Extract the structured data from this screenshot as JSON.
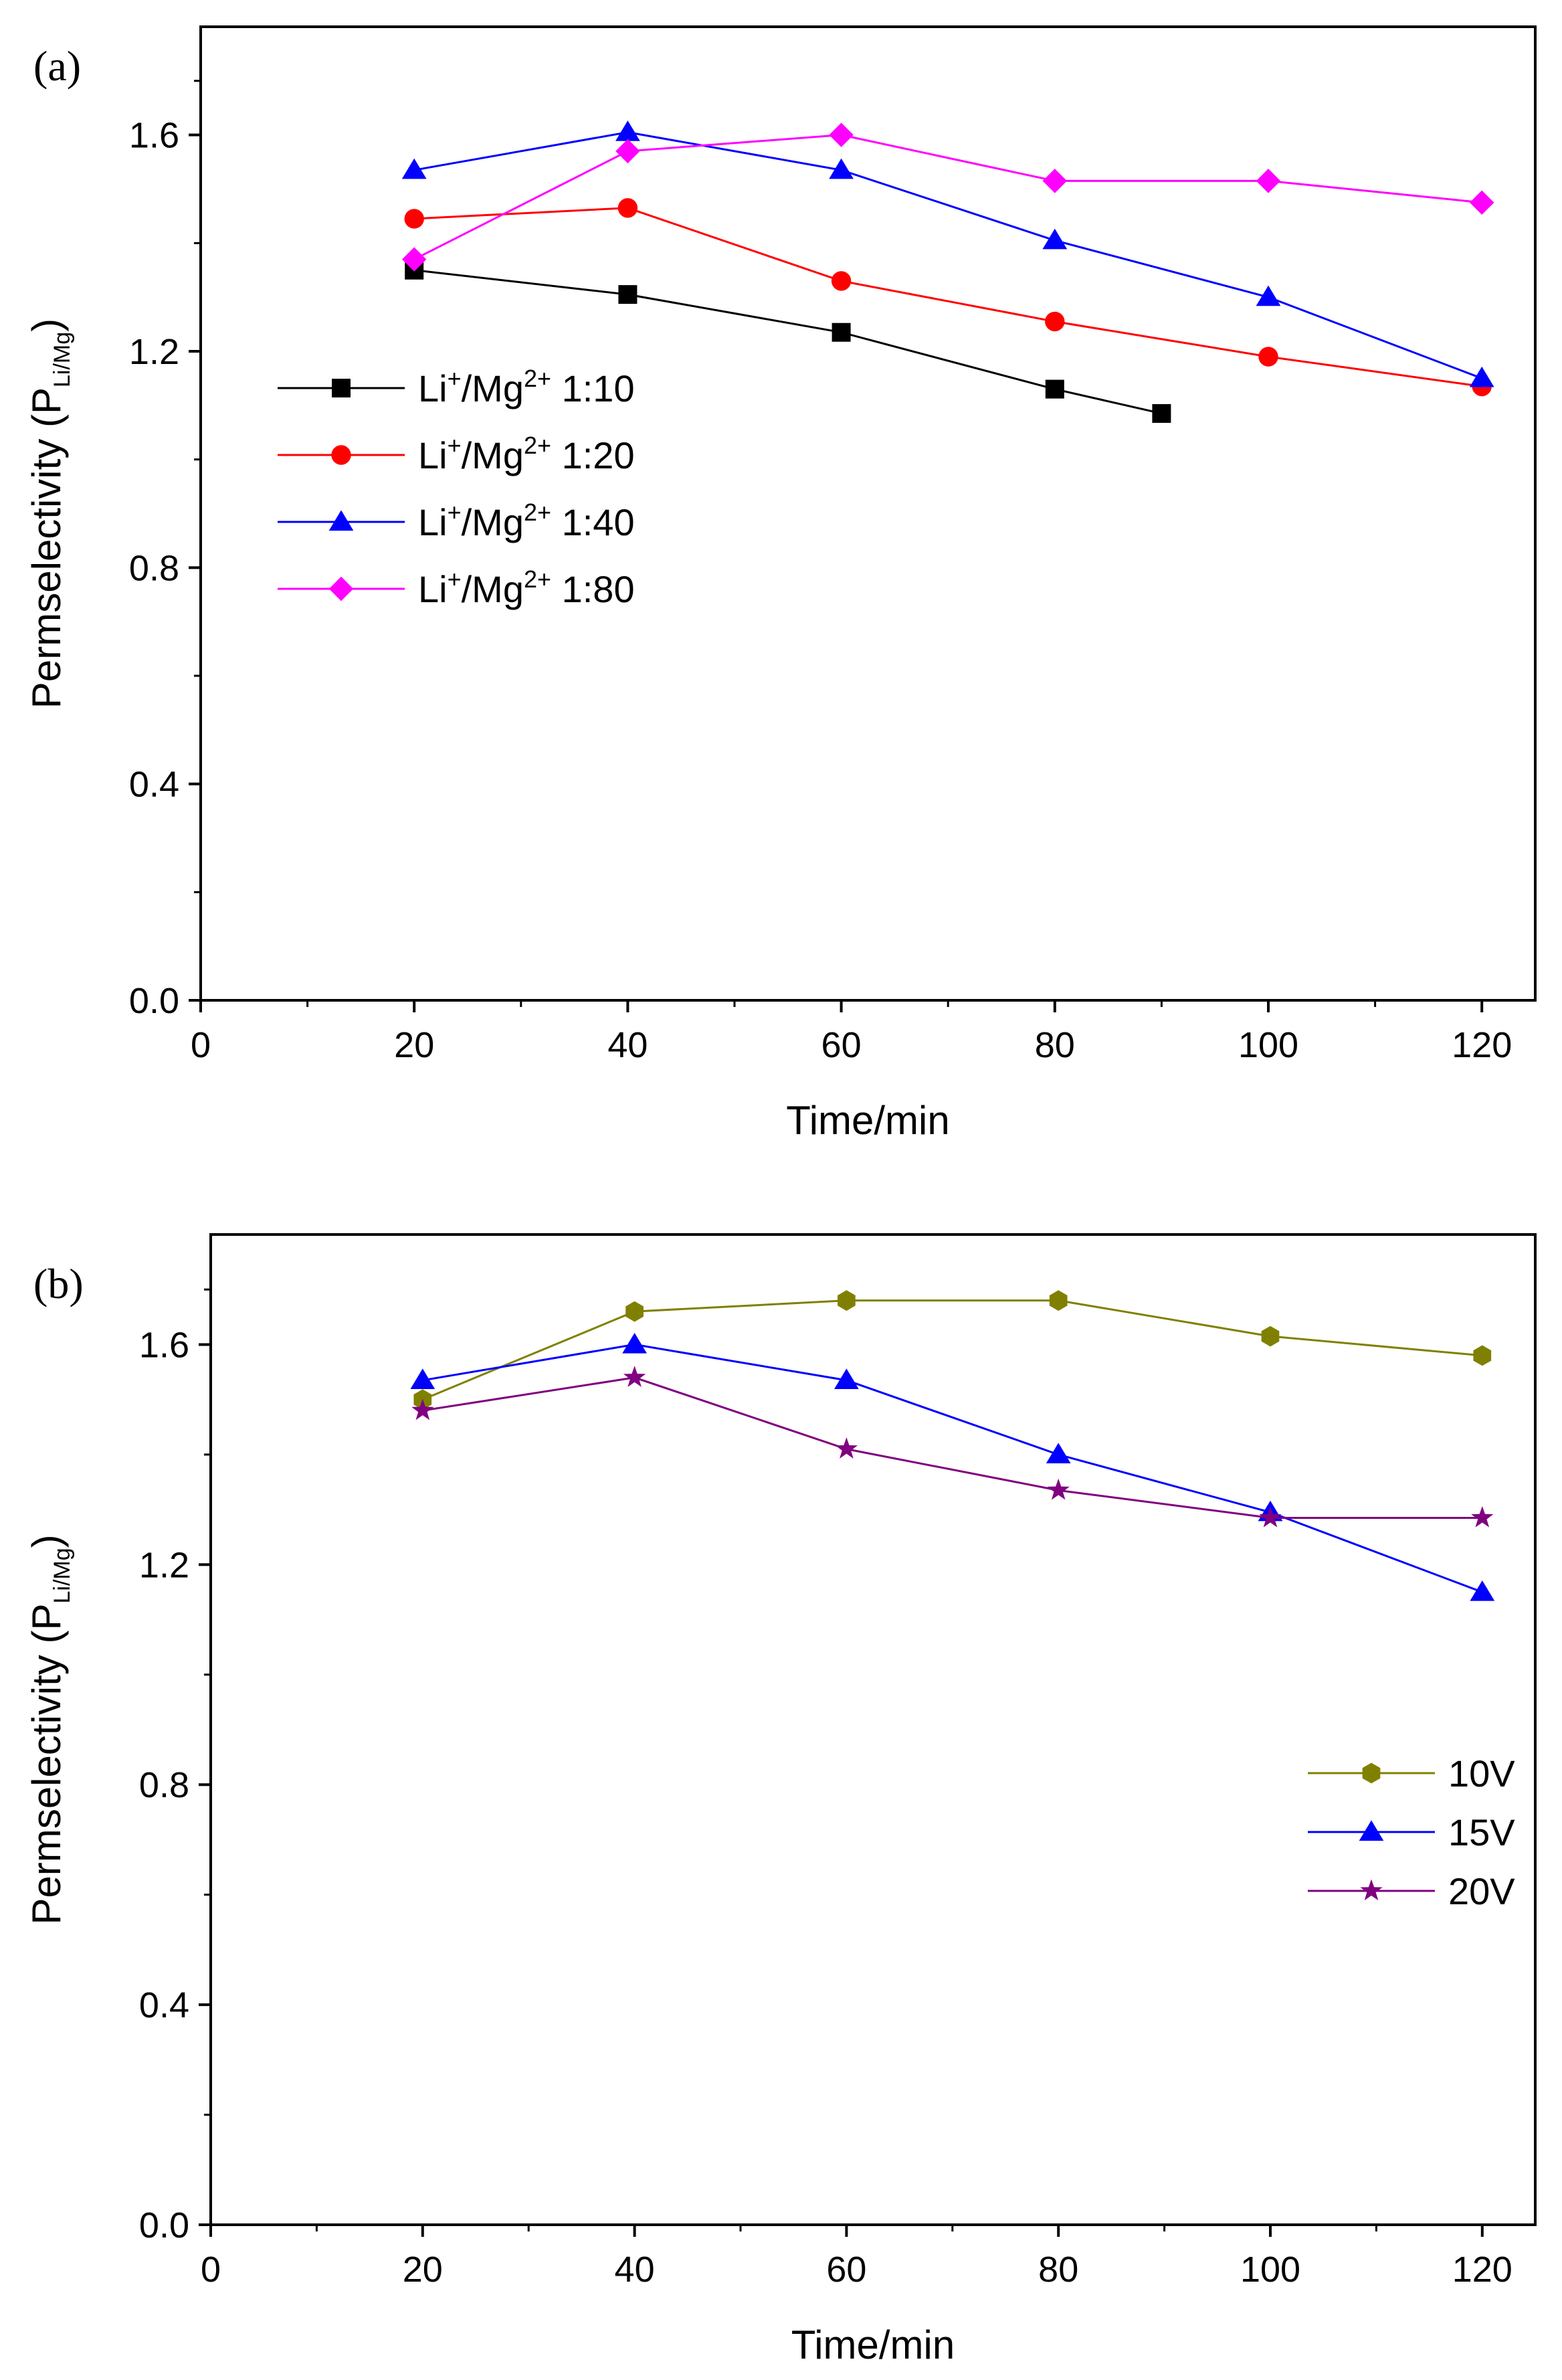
{
  "chart_data": [
    {
      "type": "line",
      "panel_label": "(a)",
      "xlabel": "Time/min",
      "ylabel_main": "Permselectivity (P",
      "ylabel_sub": "Li/Mg",
      "ylabel_end": ")",
      "xlim": [
        0,
        125
      ],
      "ylim": [
        0,
        1.8
      ],
      "xticks": [
        0,
        20,
        40,
        60,
        80,
        100,
        120
      ],
      "xtick_labels": [
        "0",
        "20",
        "40",
        "60",
        "80",
        "100",
        "120"
      ],
      "yticks": [
        0,
        0.4,
        0.8,
        1.2,
        1.6
      ],
      "ytick_labels": [
        "0.0",
        "0.4",
        "0.8",
        "1.2",
        "1.6"
      ],
      "legend_position": "left-middle",
      "series": [
        {
          "legend_pre": "Li",
          "legend_sup1": "+",
          "legend_mid": "/Mg",
          "legend_sup2": "2+",
          "legend_post": " 1:10",
          "color": "#000000",
          "marker": "square",
          "x": [
            20,
            40,
            60,
            80,
            90
          ],
          "y": [
            1.35,
            1.305,
            1.235,
            1.13,
            1.085
          ]
        },
        {
          "legend_pre": "Li",
          "legend_sup1": "+",
          "legend_mid": "/Mg",
          "legend_sup2": "2+",
          "legend_post": " 1:20",
          "color": "#ff0000",
          "marker": "circle",
          "x": [
            20,
            40,
            60,
            80,
            100,
            120
          ],
          "y": [
            1.445,
            1.465,
            1.33,
            1.255,
            1.19,
            1.135
          ]
        },
        {
          "legend_pre": "Li",
          "legend_sup1": "+",
          "legend_mid": "/Mg",
          "legend_sup2": "2+",
          "legend_post": " 1:40",
          "color": "#0000ff",
          "marker": "triangle",
          "x": [
            20,
            40,
            60,
            80,
            100,
            120
          ],
          "y": [
            1.535,
            1.605,
            1.535,
            1.405,
            1.3,
            1.15
          ]
        },
        {
          "legend_pre": "Li",
          "legend_sup1": "+",
          "legend_mid": "/Mg",
          "legend_sup2": "2+",
          "legend_post": " 1:80",
          "color": "#ff00ff",
          "marker": "diamond",
          "x": [
            20,
            40,
            60,
            80,
            100,
            120
          ],
          "y": [
            1.37,
            1.57,
            1.6,
            1.515,
            1.515,
            1.475
          ]
        }
      ]
    },
    {
      "type": "line",
      "panel_label": "(b)",
      "xlabel": "Time/min",
      "ylabel_main": "Permselectivity (P",
      "ylabel_sub": "Li/Mg",
      "ylabel_end": ")",
      "xlim": [
        0,
        125
      ],
      "ylim": [
        0,
        1.8
      ],
      "xticks": [
        0,
        20,
        40,
        60,
        80,
        100,
        120
      ],
      "xtick_labels": [
        "0",
        "20",
        "40",
        "60",
        "80",
        "100",
        "120"
      ],
      "yticks": [
        0,
        0.4,
        0.8,
        1.2,
        1.6
      ],
      "ytick_labels": [
        "0.0",
        "0.4",
        "0.8",
        "1.2",
        "1.6"
      ],
      "legend_position": "right-middle",
      "series": [
        {
          "legend_pre": "10V",
          "color": "#808000",
          "marker": "hexagon",
          "x": [
            20,
            40,
            60,
            80,
            100,
            120
          ],
          "y": [
            1.5,
            1.66,
            1.68,
            1.68,
            1.615,
            1.58
          ]
        },
        {
          "legend_pre": "15V",
          "color": "#0000ff",
          "marker": "triangle",
          "x": [
            20,
            40,
            60,
            80,
            100,
            120
          ],
          "y": [
            1.535,
            1.6,
            1.535,
            1.4,
            1.295,
            1.15
          ]
        },
        {
          "legend_pre": "20V",
          "color": "#800080",
          "marker": "star",
          "x": [
            20,
            40,
            60,
            80,
            100,
            120
          ],
          "y": [
            1.48,
            1.54,
            1.41,
            1.335,
            1.285,
            1.285
          ]
        }
      ]
    }
  ]
}
